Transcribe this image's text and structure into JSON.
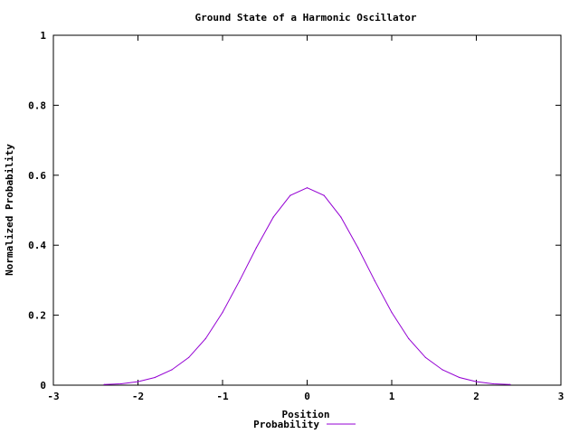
{
  "chart_data": {
    "type": "line",
    "title": "Ground State of a Harmonic Oscillator",
    "xlabel": "Position",
    "ylabel": "Normalized Probability",
    "xlim": [
      -3,
      3
    ],
    "ylim": [
      0,
      1
    ],
    "xticks": [
      "-3",
      "-2",
      "-1",
      "0",
      "1",
      "2",
      "3"
    ],
    "yticks": [
      "0",
      "0.2",
      "0.4",
      "0.6",
      "0.8",
      "1"
    ],
    "grid": false,
    "legend": "bottom-center",
    "series": [
      {
        "name": "Probability",
        "color": "#9400d3",
        "x": [
          -2.4,
          -2.2,
          -2.0,
          -1.8,
          -1.6,
          -1.4,
          -1.2,
          -1.0,
          -0.8,
          -0.6,
          -0.4,
          -0.2,
          0.0,
          0.2,
          0.4,
          0.6,
          0.8,
          1.0,
          1.2,
          1.4,
          1.6,
          1.8,
          2.0,
          2.2,
          2.4
        ],
        "y": [
          0.002,
          0.004,
          0.01,
          0.022,
          0.044,
          0.079,
          0.133,
          0.208,
          0.298,
          0.393,
          0.48,
          0.542,
          0.564,
          0.542,
          0.48,
          0.393,
          0.298,
          0.208,
          0.133,
          0.079,
          0.044,
          0.022,
          0.01,
          0.004,
          0.002
        ]
      }
    ]
  }
}
